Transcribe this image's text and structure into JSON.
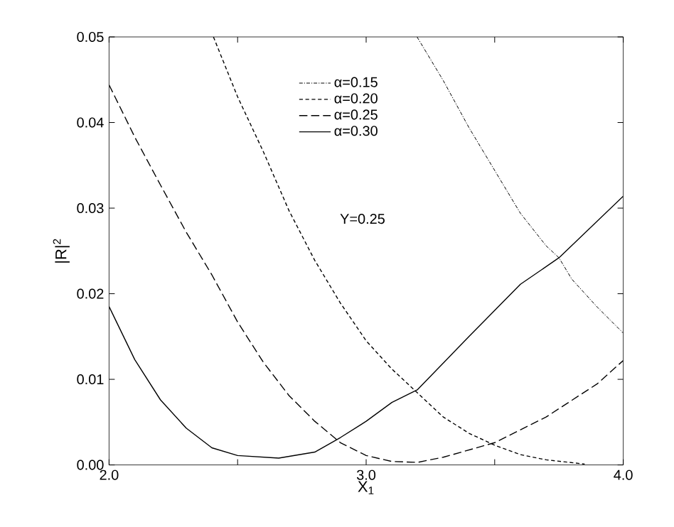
{
  "chart_data": {
    "type": "line",
    "xlabel": "X$_{1}$",
    "ylabel": "|R|$^{2}$",
    "annotations": [
      "Y=0.25"
    ],
    "xlim": [
      2,
      4
    ],
    "ylim": [
      0,
      0.05
    ],
    "xticks": [
      {
        "value": 2,
        "label": "2.0"
      },
      {
        "value": 2.5,
        "label": null
      },
      {
        "value": 3,
        "label": "3.0"
      },
      {
        "value": 3.5,
        "label": null
      },
      {
        "value": 4,
        "label": "4.0"
      }
    ],
    "yticks": [
      {
        "value": 0,
        "label": "0.00"
      },
      {
        "value": 0.01,
        "label": "0.01"
      },
      {
        "value": 0.02,
        "label": "0.02"
      },
      {
        "value": 0.03,
        "label": "0.03"
      },
      {
        "value": 0.04,
        "label": "0.04"
      },
      {
        "value": 0.05,
        "label": "0.05"
      }
    ],
    "legend": "top",
    "marker": "none",
    "series": [
      {
        "name": "α=0.15",
        "color": "#000000",
        "line_style": "dotted",
        "x": [
          3.198,
          3.3,
          3.4,
          3.5,
          3.6,
          3.7,
          3.75,
          3.8,
          3.9,
          4.0
        ],
        "values": [
          0.05,
          0.0449,
          0.0394,
          0.0344,
          0.0294,
          0.0256,
          0.0242,
          0.0217,
          0.0184,
          0.0154
        ]
      },
      {
        "name": "α=0.20",
        "color": "#000000",
        "line_style": "dashed",
        "x": [
          2.406,
          2.5,
          2.6,
          2.7,
          2.8,
          2.9,
          3.0,
          3.1,
          3.2,
          3.3,
          3.4,
          3.5,
          3.6,
          3.7,
          3.85
        ],
        "values": [
          0.05,
          0.043,
          0.0366,
          0.0297,
          0.0239,
          0.0189,
          0.0145,
          0.0112,
          0.0084,
          0.0056,
          0.0037,
          0.0023,
          0.0012,
          0.0006,
          0.0001
        ]
      },
      {
        "name": "α=0.25",
        "color": "#000000",
        "line_style": "dashed",
        "x": [
          2.0,
          2.1,
          2.2,
          2.3,
          2.4,
          2.5,
          2.6,
          2.7,
          2.8,
          2.9,
          3.0,
          3.1,
          3.2,
          3.3,
          3.5,
          3.7,
          3.9,
          4.0
        ],
        "values": [
          0.0444,
          0.0383,
          0.0327,
          0.0272,
          0.0222,
          0.0167,
          0.012,
          0.0081,
          0.0051,
          0.0026,
          0.0011,
          0.0004,
          0.0003,
          0.0009,
          0.0026,
          0.0056,
          0.0095,
          0.0122
        ]
      },
      {
        "name": "α=0.30",
        "color": "#000000",
        "line_style": "solid",
        "x": [
          2.0,
          2.1,
          2.2,
          2.3,
          2.4,
          2.5,
          2.66,
          2.8,
          2.9,
          3.0,
          3.1,
          3.2,
          3.4,
          3.6,
          3.75,
          4.0
        ],
        "values": [
          0.0185,
          0.0123,
          0.0076,
          0.0043,
          0.002,
          0.0011,
          0.0008,
          0.0015,
          0.0032,
          0.0051,
          0.0073,
          0.0088,
          0.015,
          0.0211,
          0.0242,
          0.0314
        ]
      }
    ]
  }
}
